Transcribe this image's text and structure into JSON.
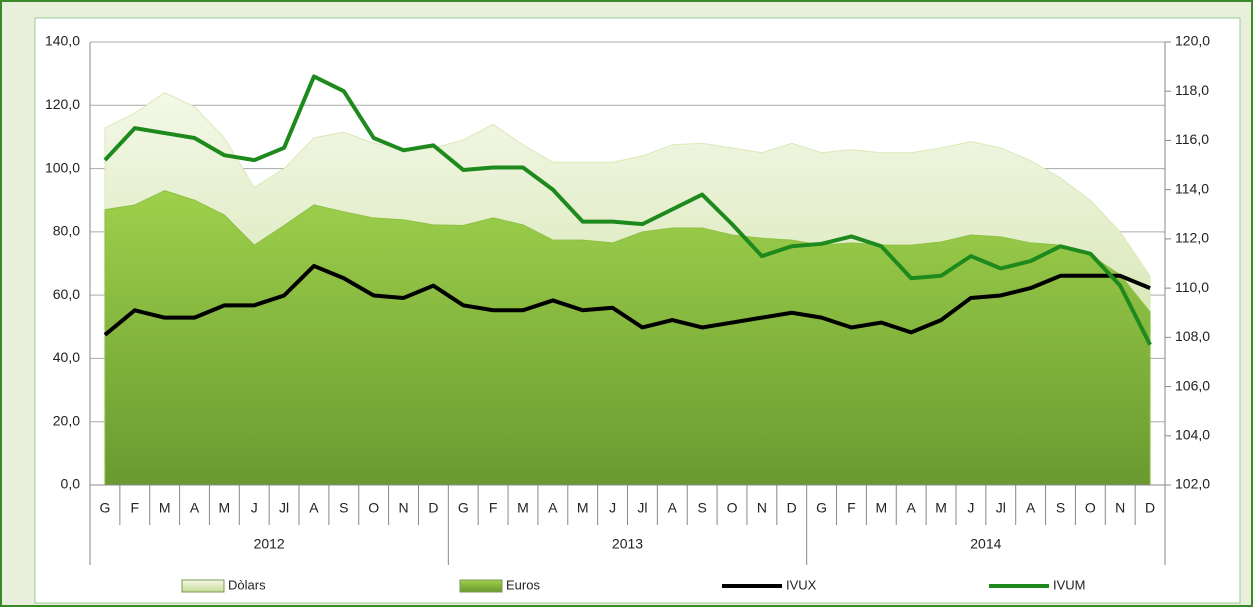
{
  "chart_data": {
    "type": "area",
    "categories": [
      "G",
      "F",
      "M",
      "A",
      "M",
      "J",
      "Jl",
      "A",
      "S",
      "O",
      "N",
      "D",
      "G",
      "F",
      "M",
      "A",
      "M",
      "J",
      "Jl",
      "A",
      "S",
      "O",
      "N",
      "D",
      "G",
      "F",
      "M",
      "A",
      "M",
      "J",
      "Jl",
      "A",
      "S",
      "O",
      "N",
      "D"
    ],
    "year_groups": [
      "2012",
      "2013",
      "2014"
    ],
    "series": [
      {
        "name": "Dòlars",
        "style": "area",
        "color": "#dbe9b8",
        "values": [
          112.8,
          117.5,
          124,
          119.5,
          109.7,
          94,
          100,
          109.7,
          111.5,
          108,
          106.5,
          106.5,
          109,
          114,
          107.5,
          102,
          102,
          102,
          104,
          107.5,
          108,
          106.5,
          105,
          108,
          105,
          106,
          105,
          105,
          106.5,
          108.5,
          106.5,
          102.5,
          97,
          90,
          80,
          66
        ]
      },
      {
        "name": "Euros",
        "style": "area",
        "color": "#8dc044",
        "values": [
          87,
          88.5,
          93,
          90,
          85.3,
          75.8,
          82,
          88.5,
          86.3,
          84.4,
          83.8,
          82.2,
          82,
          84.4,
          82.2,
          77.4,
          77.4,
          76.5,
          80,
          81.2,
          81.2,
          79,
          78,
          77.4,
          75.8,
          76.5,
          75.8,
          75.8,
          76.8,
          79,
          78.4,
          76.5,
          75.8,
          72.7,
          66.4,
          54.7
        ]
      },
      {
        "name": "IVUX",
        "style": "line",
        "axis": "y2",
        "color": "#000000",
        "values": [
          108.1,
          109.1,
          108.8,
          108.8,
          109.3,
          109.3,
          109.7,
          110.9,
          110.4,
          109.7,
          109.6,
          110.1,
          109.3,
          109.1,
          109.1,
          109.5,
          109.1,
          109.2,
          108.4,
          108.7,
          108.4,
          108.6,
          108.8,
          109.0,
          108.8,
          108.4,
          108.6,
          108.2,
          108.7,
          109.6,
          109.7,
          110.0,
          110.5,
          110.5,
          110.5,
          110.0
        ]
      },
      {
        "name": "IVUM",
        "style": "line",
        "axis": "y2",
        "color": "#1e8a1e",
        "values": [
          115.2,
          116.5,
          116.3,
          116.1,
          115.4,
          115.2,
          115.7,
          118.6,
          118.0,
          116.1,
          115.6,
          115.8,
          114.8,
          114.9,
          114.9,
          114.0,
          112.7,
          112.7,
          112.6,
          113.2,
          113.8,
          112.6,
          111.3,
          111.7,
          111.8,
          112.1,
          111.7,
          110.4,
          110.5,
          111.3,
          110.8,
          111.1,
          111.7,
          111.4,
          110.1,
          107.7
        ]
      }
    ],
    "ylim": [
      0,
      140
    ],
    "yticks": [
      {
        "value": 0,
        "label": "0,0"
      },
      {
        "value": 20,
        "label": "20,0"
      },
      {
        "value": 40,
        "label": "40,0"
      },
      {
        "value": 60,
        "label": "60,0"
      },
      {
        "value": 80,
        "label": "80,0"
      },
      {
        "value": 100,
        "label": "100,0"
      },
      {
        "value": 120,
        "label": "120,0"
      },
      {
        "value": 140,
        "label": "140,0"
      }
    ],
    "y2lim": [
      102,
      120
    ],
    "y2ticks": [
      {
        "value": 102,
        "label": "102,0"
      },
      {
        "value": 104,
        "label": "104,0"
      },
      {
        "value": 106,
        "label": "106,0"
      },
      {
        "value": 108,
        "label": "108,0"
      },
      {
        "value": 110,
        "label": "110,0"
      },
      {
        "value": 112,
        "label": "112,0"
      },
      {
        "value": 114,
        "label": "114,0"
      },
      {
        "value": 116,
        "label": "116,0"
      },
      {
        "value": 118,
        "label": "118,0"
      },
      {
        "value": 120,
        "label": "120,0"
      }
    ],
    "grid": true,
    "legend": "bottom"
  }
}
